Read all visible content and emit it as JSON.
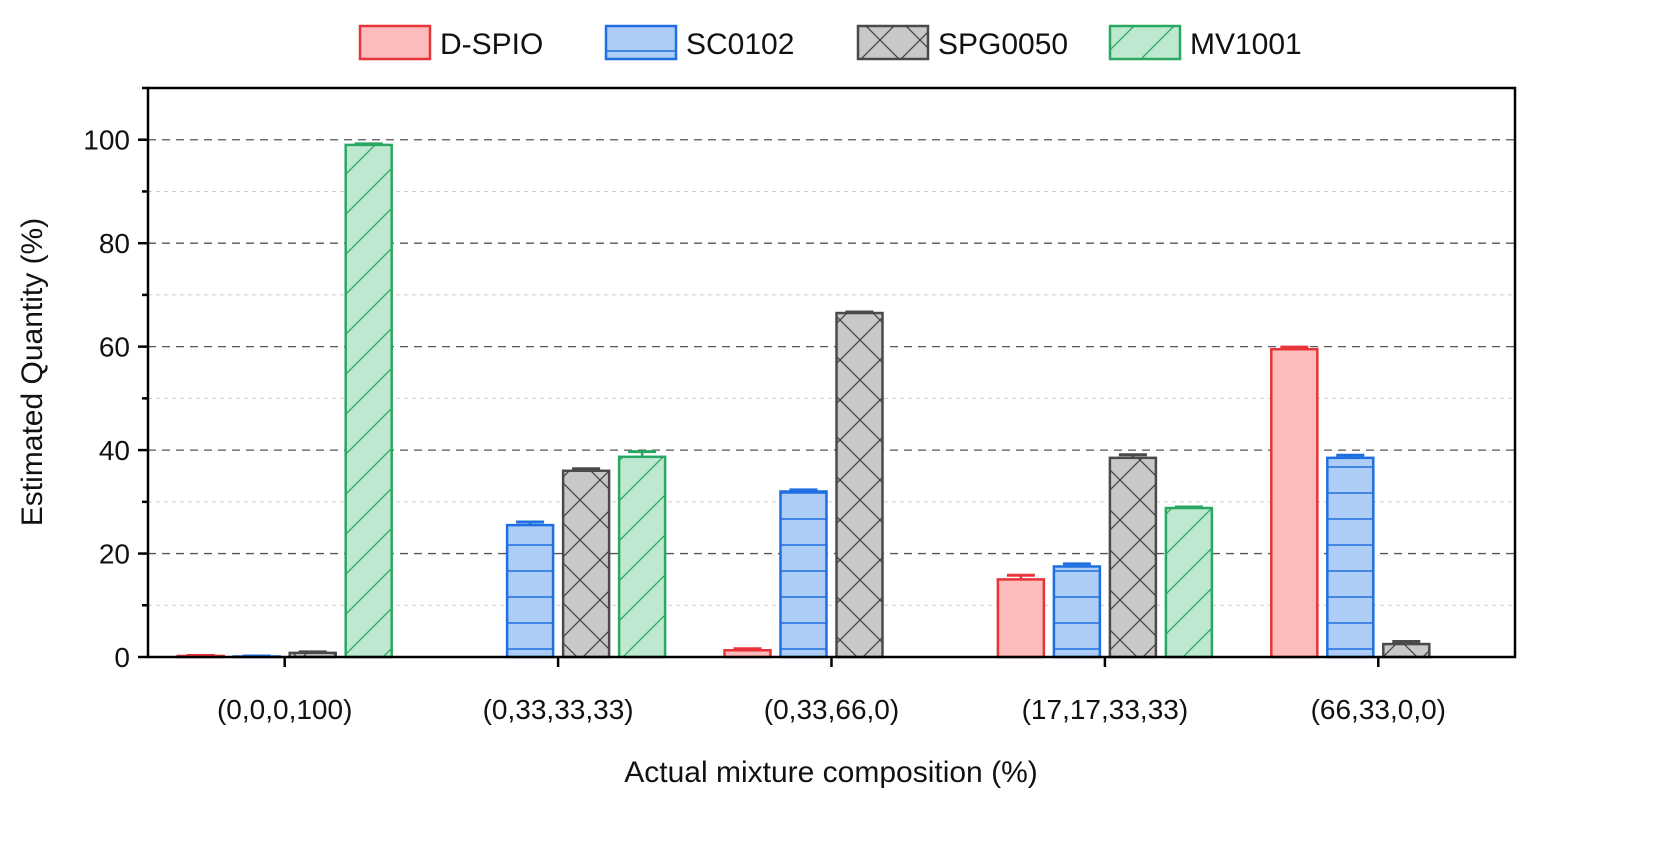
{
  "chart_data": {
    "type": "bar",
    "title": "",
    "xlabel": "Actual mixture composition (%)",
    "ylabel": "Estimated Quantity (%)",
    "ylim": [
      0,
      110
    ],
    "yticks": [
      0,
      20,
      40,
      60,
      80,
      100
    ],
    "grid": true,
    "legend_placement": "top-center",
    "categories": [
      "(0,0,0,100)",
      "(0,33,33,33)",
      "(0,33,66,0)",
      "(17,17,33,33)",
      "(66,33,0,0)"
    ],
    "series": [
      {
        "name": "D-SPIO",
        "values": [
          0.2,
          0,
          1.3,
          15.0,
          59.5
        ],
        "errors": [
          0.1,
          0,
          0.3,
          0.8,
          0.4
        ],
        "edge": "#e8333a",
        "fill": "#fcbcbc",
        "pattern": "none"
      },
      {
        "name": "SC0102",
        "values": [
          0.1,
          25.5,
          32.0,
          17.5,
          38.5
        ],
        "errors": [
          0.1,
          0.6,
          0.3,
          0.5,
          0.5
        ],
        "edge": "#1f6fe0",
        "fill": "#aecdf6",
        "pattern": "horizontal"
      },
      {
        "name": "SPG0050",
        "values": [
          0.8,
          36.0,
          66.5,
          38.5,
          2.5
        ],
        "errors": [
          0.2,
          0.4,
          0.2,
          0.6,
          0.5
        ],
        "edge": "#4a4a4a",
        "fill": "#c8c8c8",
        "pattern": "crosshatch"
      },
      {
        "name": "MV1001",
        "values": [
          99.0,
          38.7,
          0,
          28.8,
          0
        ],
        "errors": [
          0.2,
          1.0,
          0,
          0.2,
          0
        ],
        "edge": "#2aa760",
        "fill": "#bfe8d0",
        "pattern": "diagonal"
      }
    ]
  }
}
